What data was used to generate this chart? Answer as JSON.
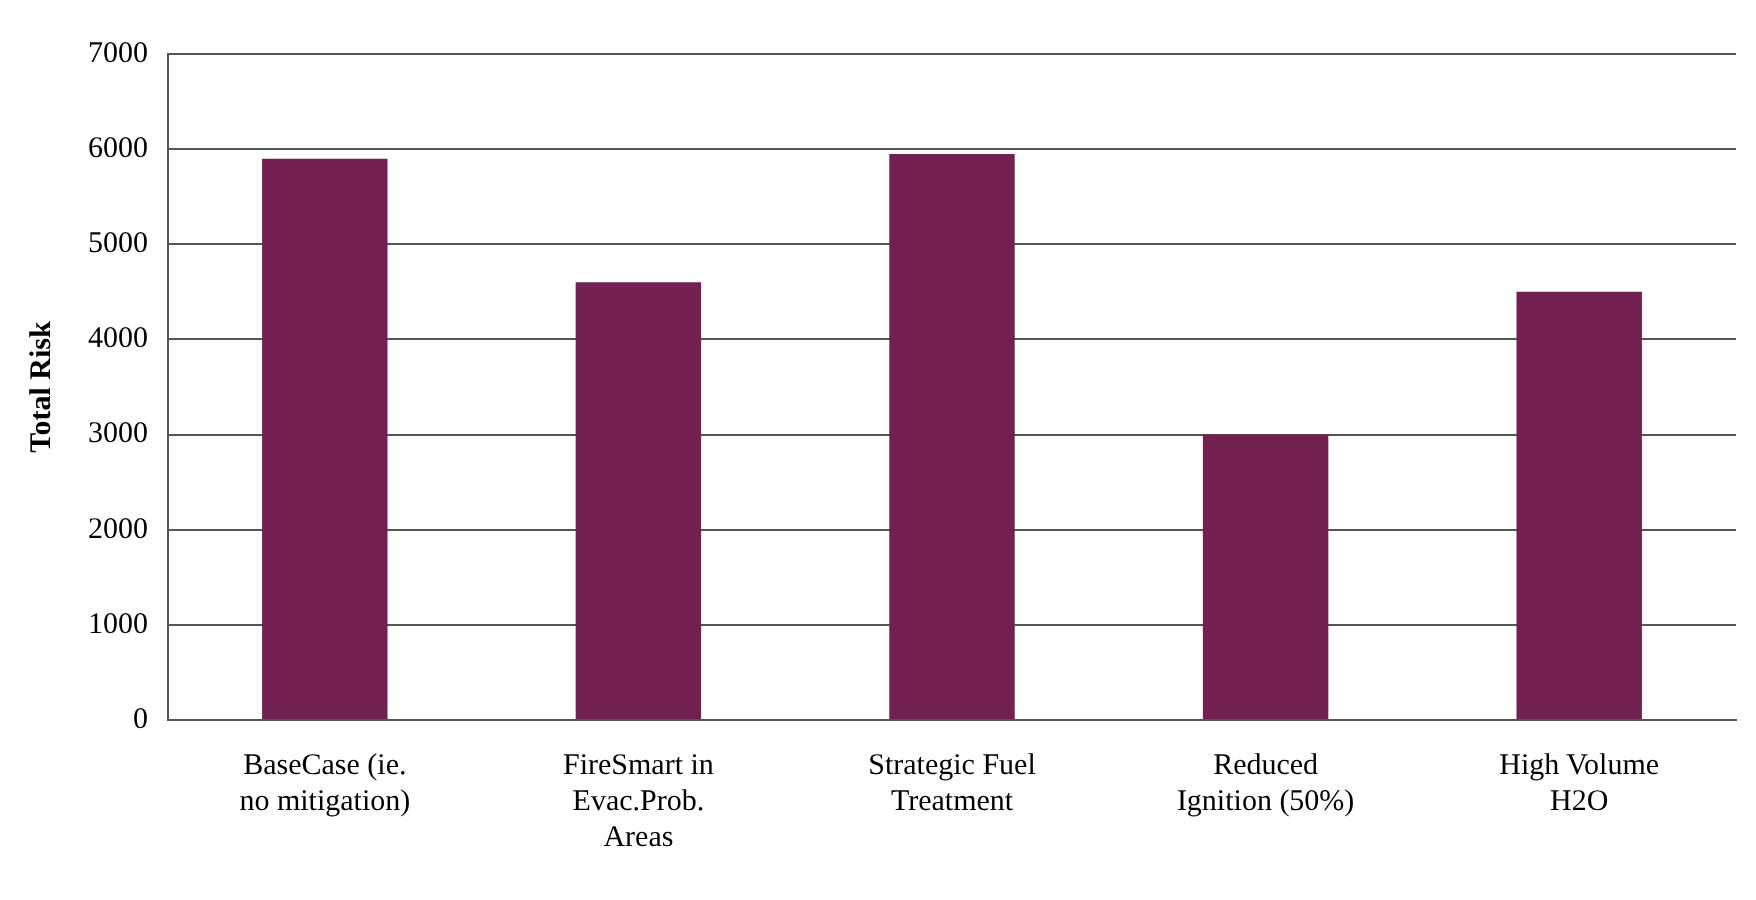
{
  "chart_data": {
    "type": "bar",
    "ylabel": "Total Risk",
    "categories": [
      "BaseCase (ie. no mitigation)",
      "FireSmart in Evac.Prob. Areas",
      "Strategic Fuel Treatment",
      "Reduced Ignition (50%)",
      "High Volume H2O"
    ],
    "values": [
      5900,
      4600,
      5950,
      3000,
      4500
    ],
    "color": "#722050",
    "ylim": [
      0,
      7000
    ],
    "yticks": [
      0,
      1000,
      2000,
      3000,
      4000,
      5000,
      6000,
      7000
    ],
    "grid": "y",
    "legend": false
  }
}
